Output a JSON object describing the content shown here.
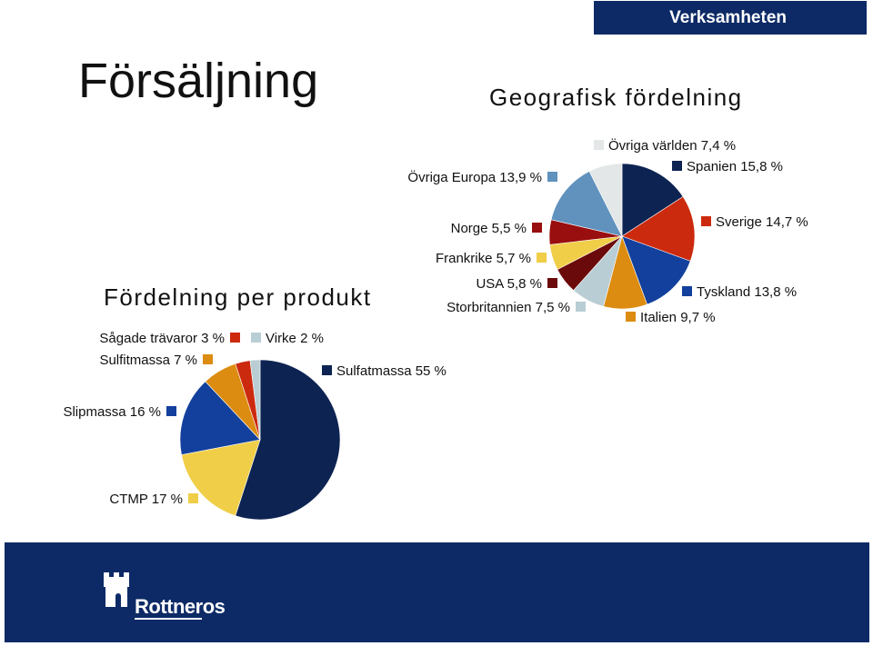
{
  "header": {
    "section_tag": "Verksamheten",
    "title": "Försäljning"
  },
  "subtitles": {
    "geographic": "Geografisk fördelning",
    "product": "Fördelning per produkt"
  },
  "footer": {
    "logo_text": "Rottneros"
  },
  "chart_data": [
    {
      "type": "pie",
      "title": "Geografisk fördelning",
      "slices": [
        {
          "label": "Spanien 15,8 %",
          "value": 15.8,
          "color": "#0d2352"
        },
        {
          "label": "Sverige 14,7 %",
          "value": 14.7,
          "color": "#cc2a0e"
        },
        {
          "label": "Tyskland 13,8 %",
          "value": 13.8,
          "color": "#12409c"
        },
        {
          "label": "Italien 9,7 %",
          "value": 9.7,
          "color": "#dc8c10"
        },
        {
          "label": "Storbritannien 7,5 %",
          "value": 7.5,
          "color": "#b9cdd4"
        },
        {
          "label": "USA 5,8 %",
          "value": 5.8,
          "color": "#6b0a0a"
        },
        {
          "label": "Frankrike 5,7 %",
          "value": 5.7,
          "color": "#f0ce48"
        },
        {
          "label": "Norge 5,5 %",
          "value": 5.5,
          "color": "#990e0e"
        },
        {
          "label": "Övriga Europa 13,9 %",
          "value": 13.9,
          "color": "#6092bd"
        },
        {
          "label": "Övriga världen 7,4 %",
          "value": 7.4,
          "color": "#e3e7e8"
        }
      ]
    },
    {
      "type": "pie",
      "title": "Fördelning per produkt",
      "slices": [
        {
          "label": "Sulfatmassa 55 %",
          "value": 55,
          "color": "#0d2352"
        },
        {
          "label": "CTMP 17 %",
          "value": 17,
          "color": "#f0ce48"
        },
        {
          "label": "Slipmassa 16 %",
          "value": 16,
          "color": "#12409c"
        },
        {
          "label": "Sulfitmassa 7 %",
          "value": 7,
          "color": "#dc8c10"
        },
        {
          "label": "Sågade trävaror 3 %",
          "value": 3,
          "color": "#cc2a0e"
        },
        {
          "label": "Virke 2 %",
          "value": 2,
          "color": "#b9cdd4"
        }
      ]
    }
  ]
}
